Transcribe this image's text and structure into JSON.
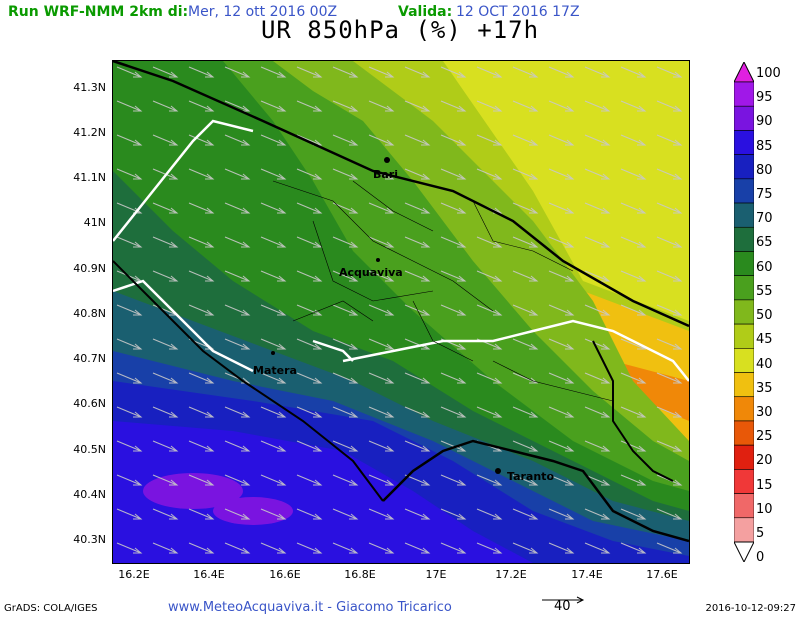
{
  "header": {
    "run_label": "Run WRF-NMM 2km di:",
    "run_date": "Mer, 12 ott 2016 00Z",
    "valid_label": "Valida:",
    "valid_date": "12 OCT 2016 17Z",
    "title": "UR 850hPa (%) +17h"
  },
  "map": {
    "lat_ticks": [
      "41.3N",
      "41.2N",
      "41.1N",
      "41N",
      "40.9N",
      "40.8N",
      "40.7N",
      "40.6N",
      "40.5N",
      "40.4N",
      "40.3N"
    ],
    "lon_ticks": [
      "16.2E",
      "16.4E",
      "16.6E",
      "16.8E",
      "17E",
      "17.2E",
      "17.4E",
      "17.6E"
    ],
    "cities": [
      "Bari",
      "Acquaviva",
      "Matera",
      "Taranto"
    ]
  },
  "colorbar": {
    "labels": [
      "100",
      "95",
      "90",
      "85",
      "80",
      "75",
      "70",
      "65",
      "60",
      "55",
      "50",
      "45",
      "40",
      "35",
      "30",
      "25",
      "20",
      "15",
      "10",
      "5",
      "0"
    ],
    "colors": [
      "#e020e0",
      "#a018e8",
      "#7a14e0",
      "#2a10e0",
      "#1820c0",
      "#1840a8",
      "#1a5f70",
      "#1e6e3c",
      "#2a8a1e",
      "#4aa01e",
      "#80b81c",
      "#b0cc18",
      "#d8e020",
      "#f0c010",
      "#f08808",
      "#e85808",
      "#e02010",
      "#f03838",
      "#f06868",
      "#f4a0a0",
      "#f8d0d0"
    ]
  },
  "footer": {
    "grads": "GrADS: COLA/IGES",
    "site": "www.MeteoAcquaviva.it  -  Giacomo Tricarico",
    "vector_value": "40",
    "timestamp": "2016-10-12-09:27"
  }
}
